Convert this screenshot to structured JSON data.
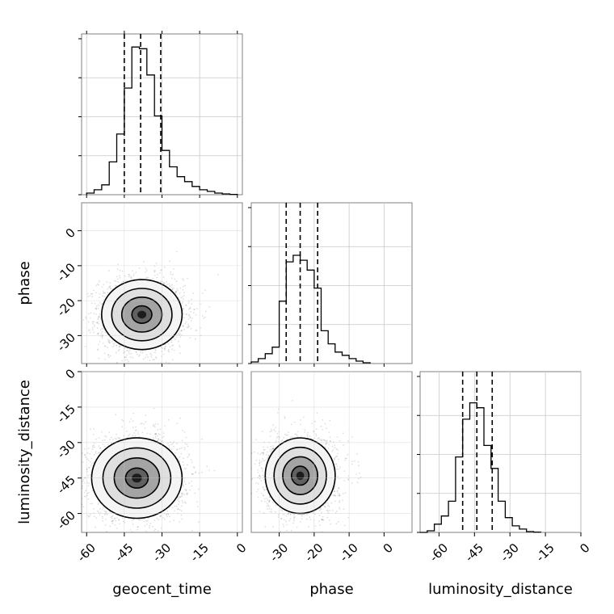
{
  "chart_data": {
    "type": "corner",
    "parameters": [
      "geocent_time",
      "phase",
      "luminosity_distance"
    ],
    "axis_labels": {
      "x": [
        "geocent_time",
        "phase",
        "luminosity_distance"
      ],
      "y": [
        "phase",
        "luminosity_distance"
      ]
    },
    "ranges": {
      "geocent_time": [
        -62,
        2
      ],
      "phase": [
        -38,
        8
      ],
      "luminosity_distance": [
        -68,
        0
      ]
    },
    "ticks": {
      "geocent_time": [
        "-60",
        "-45",
        "-30",
        "-15",
        "0"
      ],
      "phase": [
        "-30",
        "-20",
        "-10",
        "0"
      ],
      "luminosity_distance": [
        "-60",
        "-45",
        "-30",
        "-15",
        "0"
      ]
    },
    "quantiles": {
      "geocent_time": [
        -45,
        -38.5,
        -30.5
      ],
      "phase": [
        -28,
        -24,
        -19
      ],
      "luminosity_distance": [
        -50,
        -44,
        -37.5
      ]
    },
    "histograms": {
      "geocent_time": {
        "bin_edges": [
          -60,
          -57,
          -54,
          -51,
          -48,
          -45,
          -42,
          -39,
          -36,
          -33,
          -30,
          -27,
          -24,
          -21,
          -18,
          -15,
          -12,
          -9,
          -6,
          -3,
          0
        ],
        "counts": [
          0.01,
          0.03,
          0.06,
          0.2,
          0.37,
          0.65,
          0.9,
          0.89,
          0.73,
          0.48,
          0.27,
          0.17,
          0.11,
          0.08,
          0.05,
          0.03,
          0.02,
          0.01,
          0.005,
          0.002
        ]
      },
      "phase": {
        "bin_edges": [
          -38,
          -36,
          -34,
          -32,
          -30,
          -28,
          -26,
          -24,
          -22,
          -20,
          -18,
          -16,
          -14,
          -12,
          -10,
          -8,
          -6,
          -4
        ],
        "counts": [
          0.01,
          0.03,
          0.06,
          0.1,
          0.38,
          0.62,
          0.66,
          0.63,
          0.57,
          0.46,
          0.2,
          0.12,
          0.07,
          0.05,
          0.03,
          0.015,
          0.005
        ]
      },
      "luminosity_distance": {
        "bin_edges": [
          -68,
          -65,
          -62,
          -59,
          -56,
          -53,
          -50,
          -47,
          -44,
          -41,
          -38,
          -35,
          -32,
          -29,
          -26,
          -23,
          -20,
          -17
        ],
        "counts": [
          0.0,
          0.01,
          0.05,
          0.1,
          0.19,
          0.46,
          0.69,
          0.79,
          0.76,
          0.53,
          0.39,
          0.19,
          0.09,
          0.04,
          0.02,
          0.005,
          0.002
        ]
      }
    },
    "joint": [
      {
        "x": "geocent_time",
        "y": "phase",
        "center": [
          -38,
          -24
        ],
        "sigma": [
          8,
          5
        ],
        "contour_radii": [
          0.5,
          1.0,
          1.5,
          2.0
        ]
      },
      {
        "x": "geocent_time",
        "y": "luminosity_distance",
        "center": [
          -40,
          -45
        ],
        "sigma": [
          9,
          8.5
        ],
        "contour_radii": [
          0.5,
          1.0,
          1.5,
          2.0
        ]
      },
      {
        "x": "phase",
        "y": "luminosity_distance",
        "center": [
          -24,
          -44
        ],
        "sigma": [
          5,
          8
        ],
        "contour_radii": [
          0.5,
          1.0,
          1.5,
          2.0
        ]
      }
    ],
    "grid": true
  }
}
